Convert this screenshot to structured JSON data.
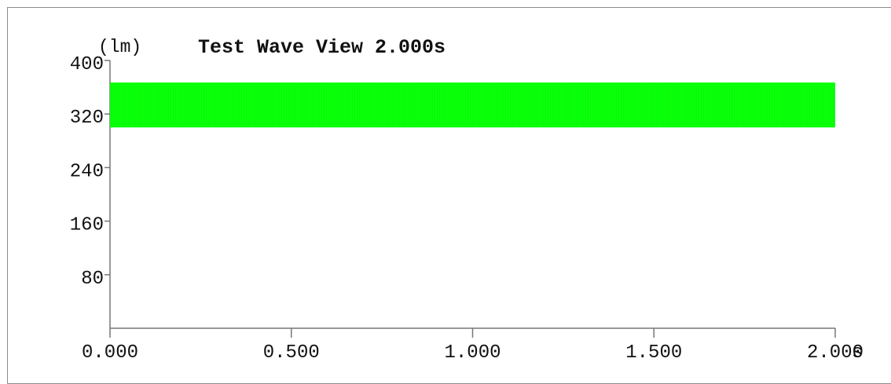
{
  "chart_data": {
    "type": "area",
    "title": "Test Wave View 2.000s",
    "ylabel": "(lm)",
    "xunit": "s",
    "xlim": [
      0,
      2.0
    ],
    "ylim": [
      0,
      400
    ],
    "yticks": [
      80,
      160,
      240,
      320,
      400
    ],
    "ytick_labels": [
      "80",
      "160",
      "240",
      "320",
      "400"
    ],
    "xticks": [
      0,
      0.5,
      1.0,
      1.5,
      2.0
    ],
    "xtick_labels": [
      "0.000",
      "0.500",
      "1.000",
      "1.500",
      "2.000"
    ],
    "grid": false,
    "series": [
      {
        "color": "#00ff00",
        "x_start": 0.0,
        "x_end": 2.0,
        "min": 300,
        "max": 367
      }
    ]
  }
}
